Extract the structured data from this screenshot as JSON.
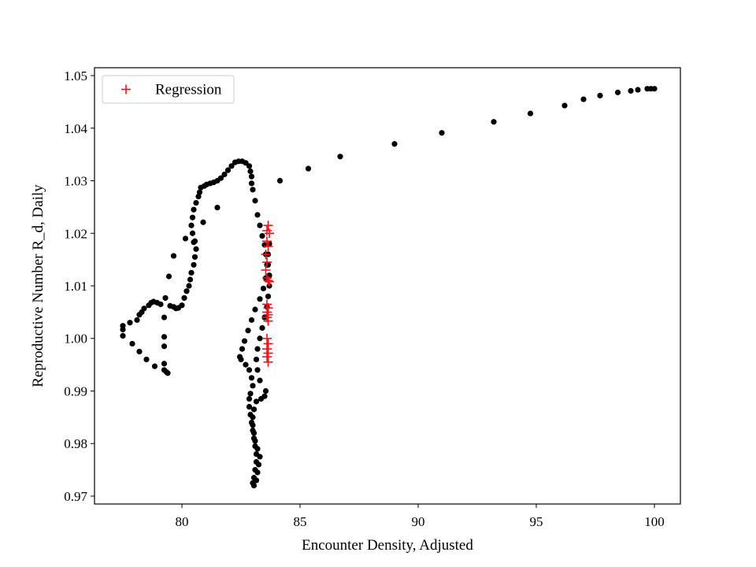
{
  "chart_data": {
    "type": "scatter",
    "title": "",
    "xlabel": "Encounter Density, Adjusted",
    "ylabel": "Reproductive Number R_d, Daily",
    "xlim": [
      76.3,
      101.1
    ],
    "ylim": [
      0.9685,
      1.0515
    ],
    "xticks": [
      80,
      85,
      90,
      95,
      100
    ],
    "yticks": [
      0.97,
      0.98,
      0.99,
      1.0,
      1.01,
      1.02,
      1.03,
      1.04,
      1.05
    ],
    "xtick_labels": [
      "80",
      "85",
      "90",
      "95",
      "100"
    ],
    "ytick_labels": [
      "0.97",
      "0.98",
      "0.99",
      "1.00",
      "1.01",
      "1.02",
      "1.03",
      "1.04",
      "1.05"
    ],
    "grid": false,
    "legend": {
      "position": "top-left",
      "entries": [
        "Regression"
      ]
    },
    "series": [
      {
        "marker": "circle",
        "color": "#000000",
        "points": [
          [
            77.5,
            1.0005
          ],
          [
            77.5,
            1.0017
          ],
          [
            77.5,
            1.0024
          ],
          [
            77.8,
            1.003
          ],
          [
            78.1,
            1.0035
          ],
          [
            78.2,
            1.0045
          ],
          [
            78.3,
            1.005
          ],
          [
            78.4,
            1.0057
          ],
          [
            78.6,
            1.0063
          ],
          [
            78.7,
            1.0068
          ],
          [
            78.8,
            1.007
          ],
          [
            78.95,
            1.0068
          ],
          [
            79.1,
            1.0065
          ],
          [
            79.3,
            1.0077
          ],
          [
            79.45,
            1.0118
          ],
          [
            79.65,
            1.0157
          ],
          [
            80.15,
            1.019
          ],
          [
            80.5,
            1.0183
          ],
          [
            80.9,
            1.0221
          ],
          [
            81.5,
            1.0249
          ],
          [
            84.15,
            1.03
          ],
          [
            85.35,
            1.0323
          ],
          [
            86.7,
            1.0346
          ],
          [
            89.0,
            1.037
          ],
          [
            91.0,
            1.0391
          ],
          [
            93.2,
            1.0412
          ],
          [
            94.75,
            1.0428
          ],
          [
            96.2,
            1.0443
          ],
          [
            97.0,
            1.0455
          ],
          [
            97.7,
            1.0462
          ],
          [
            98.45,
            1.0468
          ],
          [
            99.0,
            1.0471
          ],
          [
            99.3,
            1.0473
          ],
          [
            99.7,
            1.0475
          ],
          [
            99.85,
            1.0475
          ],
          [
            100.0,
            1.0475
          ],
          [
            77.9,
            0.999
          ],
          [
            78.2,
            0.9975
          ],
          [
            78.5,
            0.996
          ],
          [
            78.85,
            0.9947
          ],
          [
            79.25,
            0.994
          ],
          [
            79.35,
            0.9936
          ],
          [
            79.4,
            0.9934
          ],
          [
            79.25,
            0.9952
          ],
          [
            79.25,
            0.9985
          ],
          [
            79.25,
            1.0003
          ],
          [
            79.25,
            1.004
          ],
          [
            79.5,
            1.0062
          ],
          [
            79.65,
            1.006
          ],
          [
            79.75,
            1.0057
          ],
          [
            79.85,
            1.0058
          ],
          [
            80.0,
            1.0063
          ],
          [
            80.1,
            1.0077
          ],
          [
            80.2,
            1.009
          ],
          [
            80.3,
            1.01
          ],
          [
            80.35,
            1.0112
          ],
          [
            80.4,
            1.0125
          ],
          [
            80.5,
            1.014
          ],
          [
            80.55,
            1.0155
          ],
          [
            80.6,
            1.017
          ],
          [
            80.55,
            1.0185
          ],
          [
            80.45,
            1.02
          ],
          [
            80.4,
            1.0215
          ],
          [
            80.45,
            1.023
          ],
          [
            80.5,
            1.0245
          ],
          [
            80.6,
            1.0258
          ],
          [
            80.7,
            1.027
          ],
          [
            80.75,
            1.0278
          ],
          [
            80.8,
            1.0287
          ],
          [
            80.95,
            1.029
          ],
          [
            81.05,
            1.0293
          ],
          [
            81.2,
            1.0295
          ],
          [
            81.35,
            1.0297
          ],
          [
            81.5,
            1.03
          ],
          [
            81.65,
            1.0305
          ],
          [
            81.8,
            1.0312
          ],
          [
            81.95,
            1.032
          ],
          [
            82.1,
            1.0328
          ],
          [
            82.25,
            1.0335
          ],
          [
            82.4,
            1.0337
          ],
          [
            82.55,
            1.0337
          ],
          [
            82.7,
            1.0334
          ],
          [
            82.85,
            1.0328
          ],
          [
            82.9,
            1.0318
          ],
          [
            82.95,
            1.0308
          ],
          [
            82.95,
            1.0295
          ],
          [
            83.0,
            1.0283
          ],
          [
            83.1,
            1.0262
          ],
          [
            83.2,
            1.0235
          ],
          [
            83.3,
            1.0215
          ],
          [
            83.4,
            1.0195
          ],
          [
            83.5,
            1.0178
          ],
          [
            83.55,
            1.016
          ],
          [
            83.6,
            1.014
          ],
          [
            83.55,
            1.0115
          ],
          [
            83.45,
            1.0095
          ],
          [
            83.3,
            1.0075
          ],
          [
            83.1,
            1.0055
          ],
          [
            82.95,
            1.0035
          ],
          [
            82.8,
            1.0015
          ],
          [
            82.65,
            0.9995
          ],
          [
            82.55,
            0.998
          ],
          [
            82.45,
            0.9965
          ],
          [
            82.5,
            0.996
          ],
          [
            82.7,
            0.995
          ],
          [
            82.85,
            0.994
          ],
          [
            82.95,
            0.9925
          ],
          [
            83.0,
            0.991
          ],
          [
            82.9,
            0.9895
          ],
          [
            82.85,
            0.9885
          ],
          [
            82.85,
            0.987
          ],
          [
            82.9,
            0.9855
          ],
          [
            82.95,
            0.984
          ],
          [
            83.0,
            0.9825
          ],
          [
            83.05,
            0.981
          ],
          [
            83.1,
            0.9795
          ],
          [
            83.15,
            0.978
          ],
          [
            83.15,
            0.9765
          ],
          [
            83.1,
            0.975
          ],
          [
            83.05,
            0.9735
          ],
          [
            83.0,
            0.9725
          ],
          [
            83.05,
            0.972
          ],
          [
            83.15,
            0.973
          ],
          [
            83.2,
            0.9745
          ],
          [
            83.25,
            0.976
          ],
          [
            83.3,
            0.9775
          ],
          [
            83.2,
            0.979
          ],
          [
            83.1,
            0.9805
          ],
          [
            83.05,
            0.982
          ],
          [
            83.0,
            0.9835
          ],
          [
            83.0,
            0.985
          ],
          [
            83.05,
            0.9865
          ],
          [
            83.15,
            0.988
          ],
          [
            83.35,
            0.9885
          ],
          [
            83.5,
            0.989
          ],
          [
            83.55,
            0.99
          ],
          [
            83.3,
            0.992
          ],
          [
            83.2,
            0.994
          ],
          [
            83.15,
            0.996
          ],
          [
            83.2,
            0.998
          ],
          [
            83.3,
            1.0
          ],
          [
            83.4,
            1.002
          ],
          [
            83.5,
            1.004
          ],
          [
            83.6,
            1.006
          ],
          [
            83.65,
            1.008
          ],
          [
            83.7,
            1.01
          ],
          [
            83.7,
            1.012
          ],
          [
            83.65,
            1.014
          ],
          [
            83.65,
            1.016
          ],
          [
            83.7,
            1.018
          ]
        ]
      },
      {
        "name": "Regression",
        "marker": "plus",
        "color": "#e8141c",
        "points": [
          [
            83.65,
            1.0215
          ],
          [
            83.6,
            1.0205
          ],
          [
            83.7,
            1.02
          ],
          [
            83.6,
            1.0185
          ],
          [
            83.65,
            1.0175
          ],
          [
            83.55,
            1.016
          ],
          [
            83.6,
            1.0145
          ],
          [
            83.55,
            1.013
          ],
          [
            83.6,
            1.0115
          ],
          [
            83.65,
            1.011
          ],
          [
            83.7,
            1.0108
          ],
          [
            83.6,
            1.0065
          ],
          [
            83.65,
            1.0058
          ],
          [
            83.6,
            1.005
          ],
          [
            83.65,
            1.0045
          ],
          [
            83.6,
            1.004
          ],
          [
            83.65,
            1.0033
          ],
          [
            83.6,
            1.0
          ],
          [
            83.65,
            0.999
          ],
          [
            83.6,
            0.998
          ],
          [
            83.65,
            0.9972
          ],
          [
            83.6,
            0.9965
          ],
          [
            83.65,
            0.9955
          ]
        ]
      }
    ]
  }
}
